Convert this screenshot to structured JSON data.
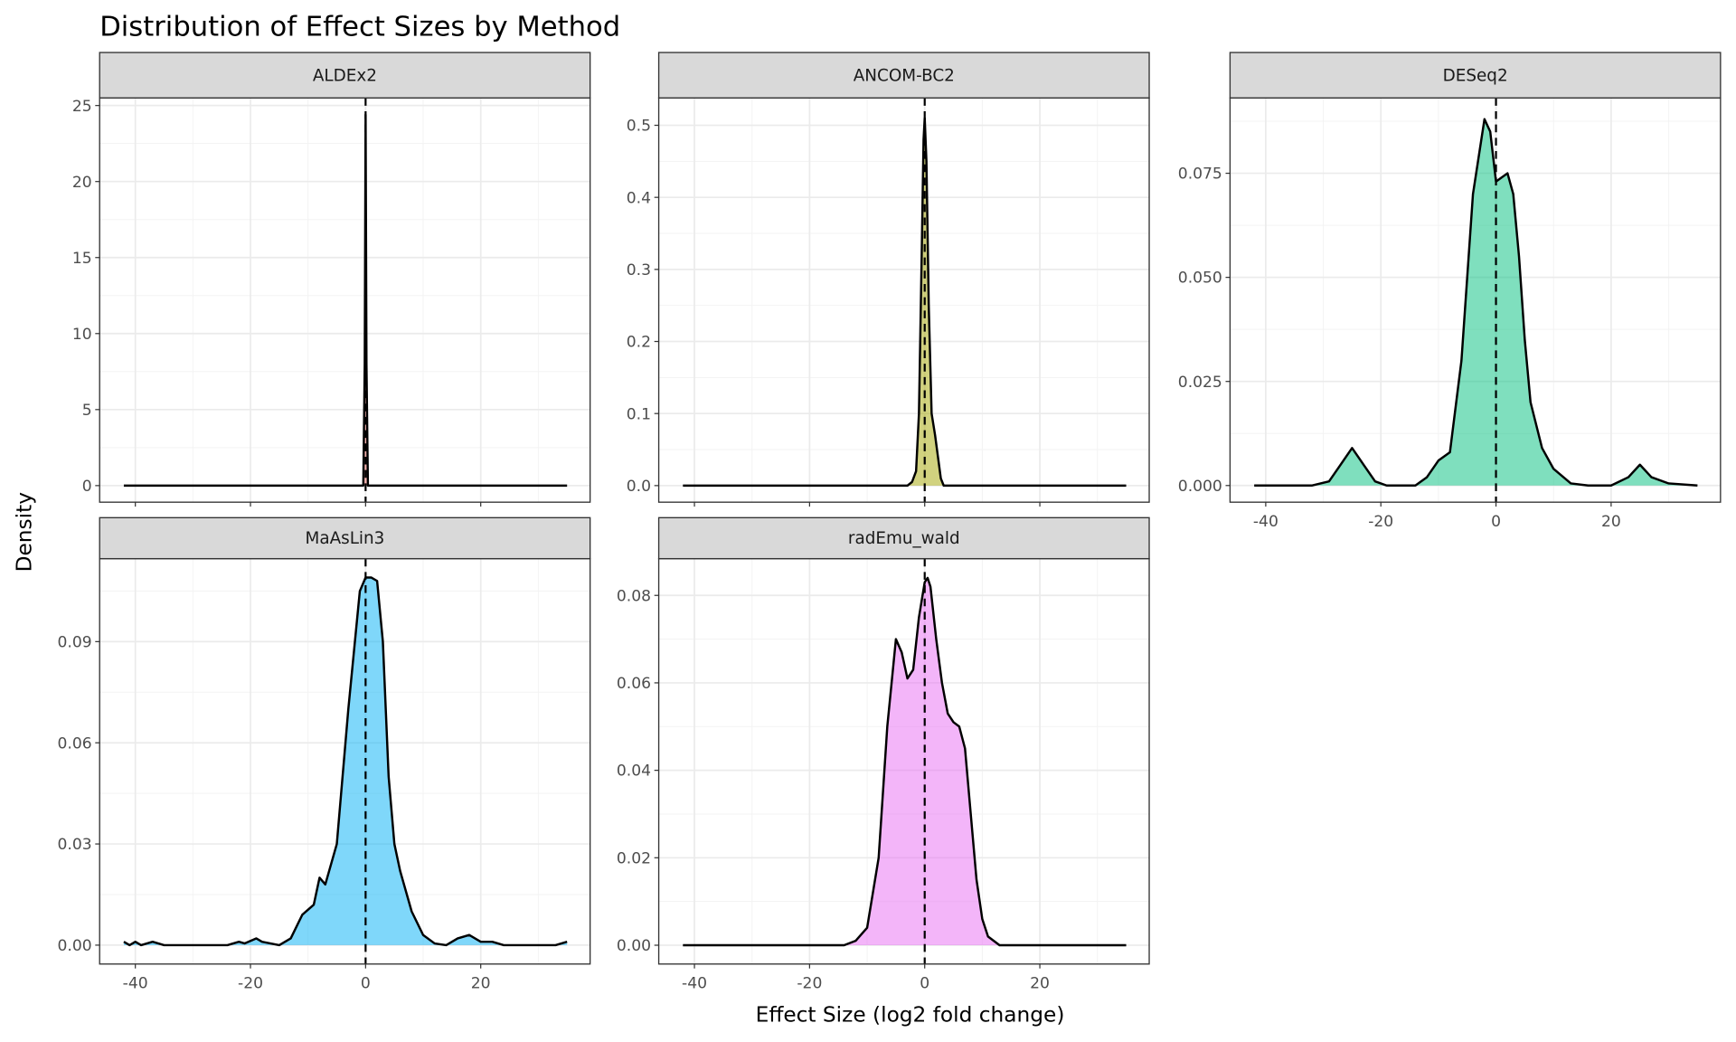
{
  "chart_data": {
    "type": "area",
    "title": "Distribution of Effect Sizes by Method",
    "xlabel": "Effect Size (log2 fold change)",
    "ylabel": "Density",
    "xlim": [
      -46.2,
      39.0
    ],
    "x_ticks": [
      -40,
      -20,
      0,
      20
    ],
    "x_tick_labels": [
      "-40",
      "-20",
      "0",
      "20"
    ],
    "reference_line": {
      "x": 0,
      "style": "dashed"
    },
    "grid": true,
    "panels": [
      {
        "name": "ALDEx2",
        "color": "#F8766D",
        "ylim": [
          -1.09,
          25.5
        ],
        "y_ticks": [
          0,
          5,
          10,
          15,
          20,
          25
        ],
        "y_tick_labels": [
          "0",
          "5",
          "10",
          "15",
          "20",
          "25"
        ],
        "show_x_axis": false,
        "x": [
          -42,
          -0.4,
          -0.15,
          0,
          0.15,
          0.4,
          35
        ],
        "y": [
          0,
          0,
          8,
          24.4,
          8,
          0,
          0
        ]
      },
      {
        "name": "ANCOM-BC2",
        "color": "#A3A500",
        "ylim": [
          -0.023,
          0.538
        ],
        "y_ticks": [
          0,
          0.1,
          0.2,
          0.3,
          0.4,
          0.5
        ],
        "y_tick_labels": [
          "0.0",
          "0.1",
          "0.2",
          "0.3",
          "0.4",
          "0.5"
        ],
        "show_x_axis": false,
        "x": [
          -42,
          -3,
          -2.2,
          -1.5,
          -1,
          -0.5,
          -0.2,
          0,
          0.3,
          0.7,
          1.2,
          1.8,
          2.3,
          2.8,
          3.3,
          35
        ],
        "y": [
          0,
          0,
          0.005,
          0.02,
          0.1,
          0.33,
          0.48,
          0.51,
          0.45,
          0.25,
          0.1,
          0.07,
          0.04,
          0.01,
          0,
          0
        ]
      },
      {
        "name": "DESeq2",
        "color": "#00BF7D",
        "ylim": [
          -0.004,
          0.0931
        ],
        "y_ticks": [
          0,
          0.025,
          0.05,
          0.075
        ],
        "y_tick_labels": [
          "0.000",
          "0.025",
          "0.050",
          "0.075"
        ],
        "show_x_axis": true,
        "x": [
          -42,
          -32,
          -29,
          -27,
          -25,
          -23,
          -21,
          -19,
          -14,
          -12,
          -10,
          -8,
          -6,
          -4,
          -2,
          -1,
          0,
          1,
          2,
          3,
          4,
          5,
          6,
          8,
          10,
          13,
          16,
          20,
          23,
          25,
          27,
          30,
          35
        ],
        "y": [
          0,
          0,
          0.001,
          0.005,
          0.009,
          0.005,
          0.001,
          0,
          0,
          0.002,
          0.006,
          0.008,
          0.03,
          0.07,
          0.088,
          0.085,
          0.073,
          0.074,
          0.075,
          0.07,
          0.055,
          0.035,
          0.02,
          0.009,
          0.004,
          0.0005,
          0,
          0,
          0.002,
          0.005,
          0.002,
          0.0005,
          0
        ]
      },
      {
        "name": "MaAsLin3",
        "color": "#00B0F6",
        "ylim": [
          -0.0056,
          0.1146
        ],
        "y_ticks": [
          0,
          0.03,
          0.06,
          0.09
        ],
        "y_tick_labels": [
          "0.00",
          "0.03",
          "0.06",
          "0.09"
        ],
        "show_x_axis": true,
        "x": [
          -42,
          -41,
          -40,
          -39,
          -37,
          -35,
          -34,
          -30,
          -24,
          -22,
          -21,
          -19,
          -18,
          -15,
          -13,
          -11,
          -9,
          -8,
          -7,
          -5,
          -3,
          -1,
          0,
          1,
          2,
          3,
          4,
          5,
          6,
          8,
          10,
          12,
          14,
          16,
          18,
          20,
          22,
          24,
          28,
          33,
          35
        ],
        "y": [
          0.001,
          0,
          0.001,
          0,
          0.001,
          0,
          0,
          0,
          0,
          0.001,
          0.0005,
          0.002,
          0.001,
          0,
          0.002,
          0.009,
          0.012,
          0.02,
          0.018,
          0.03,
          0.07,
          0.105,
          0.109,
          0.109,
          0.108,
          0.09,
          0.05,
          0.03,
          0.022,
          0.01,
          0.003,
          0.0005,
          0,
          0.002,
          0.003,
          0.001,
          0.001,
          0,
          0,
          0,
          0.001
        ]
      },
      {
        "name": "radEmu_wald",
        "color": "#E76BF3",
        "ylim": [
          -0.0043,
          0.0884
        ],
        "y_ticks": [
          0,
          0.02,
          0.04,
          0.06,
          0.08
        ],
        "y_tick_labels": [
          "0.00",
          "0.02",
          "0.04",
          "0.06",
          "0.08"
        ],
        "show_x_axis": true,
        "x": [
          -42,
          -14,
          -12,
          -10,
          -8,
          -6.5,
          -5,
          -4,
          -3,
          -2,
          -1,
          0,
          0.5,
          1,
          2,
          3,
          4,
          5,
          6,
          7,
          8,
          9,
          10,
          11,
          13,
          15,
          35
        ],
        "y": [
          0,
          0,
          0.001,
          0.004,
          0.02,
          0.05,
          0.07,
          0.067,
          0.061,
          0.063,
          0.075,
          0.083,
          0.084,
          0.082,
          0.07,
          0.06,
          0.053,
          0.051,
          0.05,
          0.045,
          0.03,
          0.015,
          0.006,
          0.002,
          0,
          0,
          0
        ]
      }
    ]
  }
}
